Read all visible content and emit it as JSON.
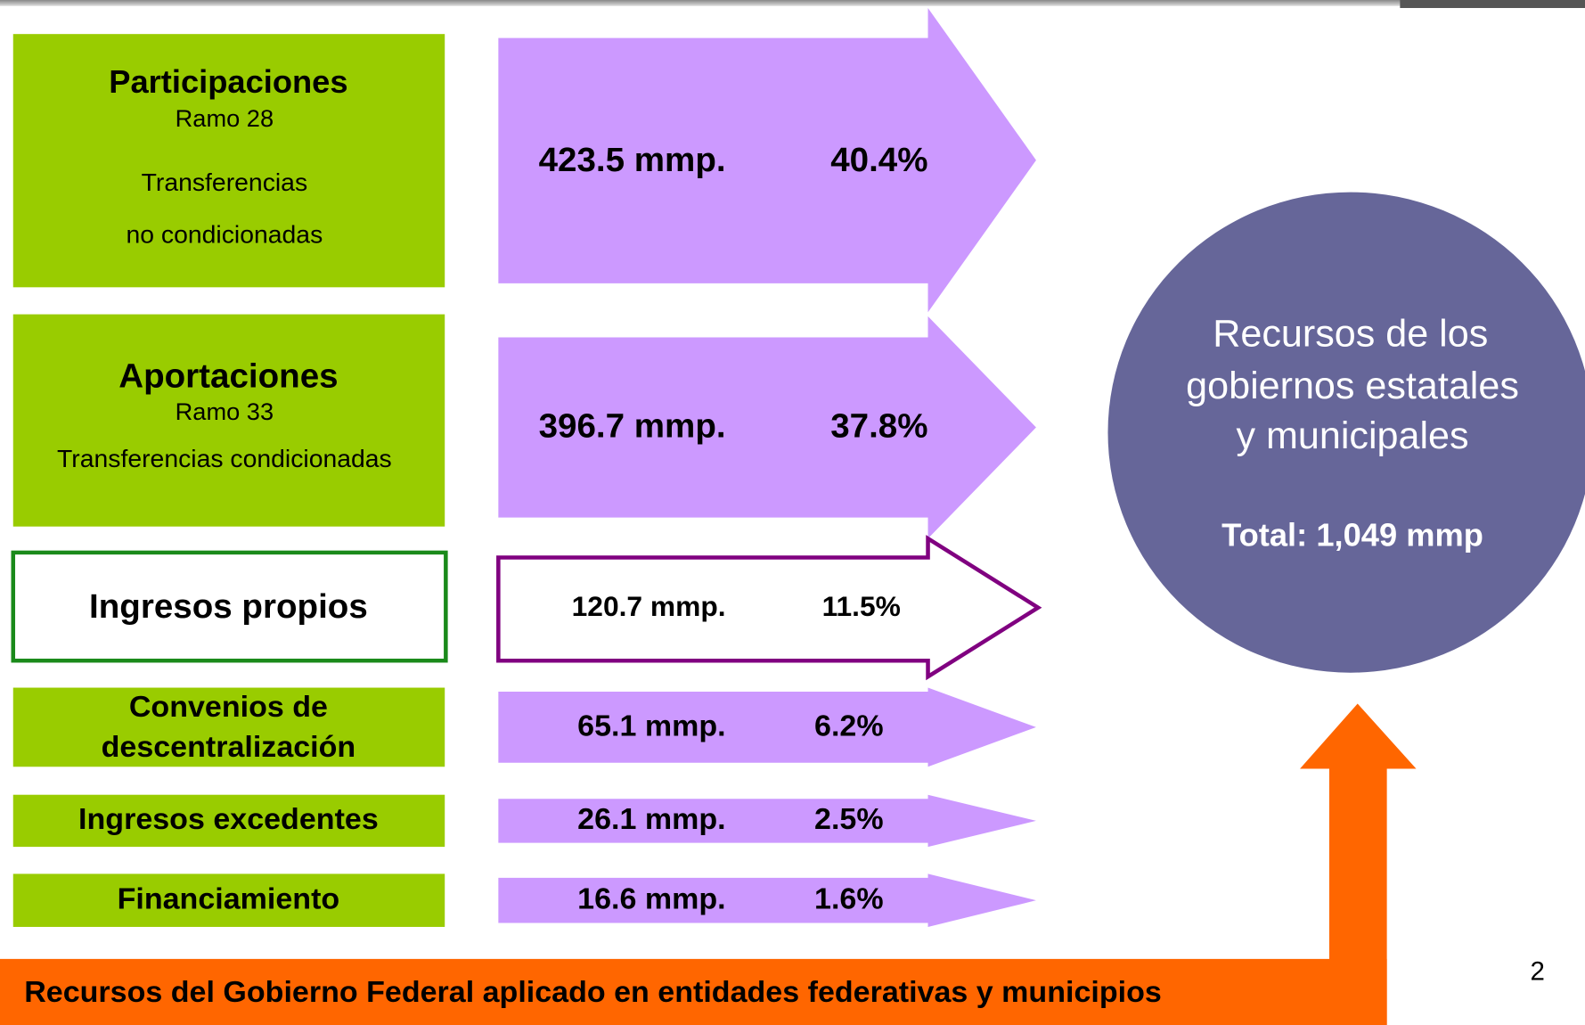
{
  "rows": [
    {
      "label": [
        "Participaciones"
      ],
      "sublines": [
        "Ramo 28",
        "Transferencias",
        "no condicionadas"
      ],
      "amount": "423.5 mmp.",
      "percent": "40.4%"
    },
    {
      "label": [
        "Aportaciones"
      ],
      "sublines": [
        "Ramo 33",
        "Transferencias condicionadas"
      ],
      "amount": "396.7 mmp.",
      "percent": "37.8%"
    },
    {
      "label": [
        "Ingresos propios"
      ],
      "sublines": [],
      "amount": "120.7 mmp.",
      "percent": "11.5%"
    },
    {
      "label": [
        "Convenios de",
        "descentralización"
      ],
      "sublines": [],
      "amount": "65.1 mmp.",
      "percent": "6.2%"
    },
    {
      "label": [
        "Ingresos excedentes"
      ],
      "sublines": [],
      "amount": "26.1 mmp.",
      "percent": "2.5%"
    },
    {
      "label": [
        "Financiamiento"
      ],
      "sublines": [],
      "amount": "16.6 mmp.",
      "percent": "1.6%"
    }
  ],
  "circle": {
    "lines": [
      "Recursos de los",
      "gobiernos estatales",
      "y municipales"
    ],
    "total": "Total: 1,049 mmp"
  },
  "banner": "Recursos del Gobierno Federal aplicado en entidades federativas y municipios",
  "page_number": "2"
}
